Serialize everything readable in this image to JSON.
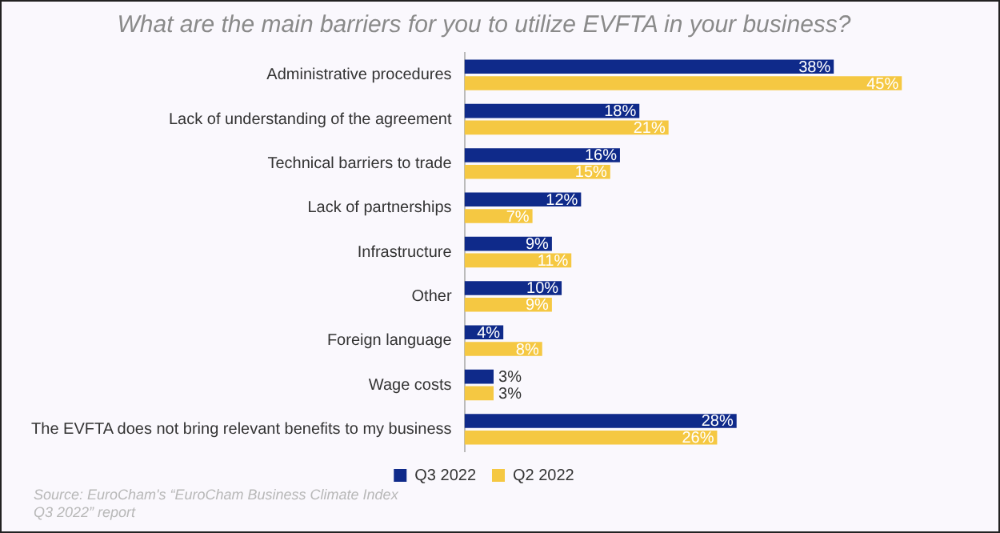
{
  "chart_data": {
    "type": "bar",
    "orientation": "horizontal",
    "title": "What are the main barriers for you to utilize EVFTA in your business?",
    "categories": [
      "Administrative procedures",
      "Lack of understanding of the agreement",
      "Technical barriers to trade",
      "Lack of partnerships",
      "Infrastructure",
      "Other",
      "Foreign language",
      "Wage costs",
      "The EVFTA does not bring relevant benefits to my business"
    ],
    "series": [
      {
        "name": "Q3 2022",
        "color": "#0f2a8a",
        "values": [
          38,
          18,
          16,
          12,
          9,
          10,
          4,
          3,
          28
        ],
        "value_labels": [
          "38%",
          "18%",
          "16%",
          "12%",
          "9%",
          "10%",
          "4%",
          "3%",
          "28%"
        ]
      },
      {
        "name": "Q2 2022",
        "color": "#f5c842",
        "values": [
          45,
          21,
          15,
          7,
          11,
          9,
          8,
          3,
          26
        ],
        "value_labels": [
          "45%",
          "21%",
          "15%",
          "7%",
          "11%",
          "9%",
          "8%",
          "3%",
          "26%"
        ]
      }
    ],
    "legend": "bottom",
    "annotations": [
      "Source: EuroCham's “EuroCham Business Climate Index Q3 2022” report"
    ]
  }
}
